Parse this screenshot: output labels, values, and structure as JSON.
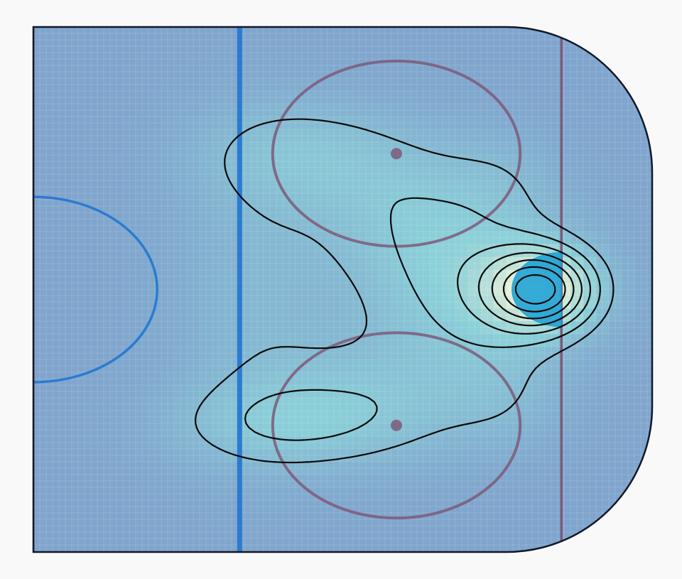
{
  "chart_data": {
    "type": "heatmap",
    "title": "",
    "xlabel": "",
    "ylabel": "",
    "grid": true,
    "legend": "none",
    "colors": {
      "background": "#f9f9f9",
      "rink_outline": "#111827",
      "blue_line": "#2b7bd0",
      "red_line": "#7d5a7a",
      "faceoff_circle": "#7d5a7a",
      "faceoff_dot": "#7d5a7a",
      "crease": "#1fa3d6",
      "contour": "#0b0b0b",
      "heat_low": "#7fa3cc",
      "heat_mid": "#8acfd8",
      "heat_high": "#fff9d6"
    },
    "density_model": {
      "x_range": [
        25,
        100
      ],
      "y_range": [
        -42.5,
        42.5
      ],
      "base": 0.02,
      "components": [
        {
          "x": 86.5,
          "y": 0,
          "sx": 4.5,
          "sy": 4.5,
          "w": 0.9
        },
        {
          "x": 78,
          "y": 0,
          "sx": 9,
          "sy": 10,
          "w": 0.35
        },
        {
          "x": 58,
          "y": 22,
          "sx": 9,
          "sy": 6,
          "w": 0.22
        },
        {
          "x": 70,
          "y": 13,
          "sx": 8,
          "sy": 8,
          "w": 0.2
        },
        {
          "x": 55,
          "y": -22,
          "sx": 10,
          "sy": 5,
          "w": 0.22
        },
        {
          "x": 66,
          "y": -18,
          "sx": 10,
          "sy": 7,
          "w": 0.2
        },
        {
          "x": 52,
          "y": 0,
          "sx": 7,
          "sy": 18,
          "w": 0.15
        },
        {
          "x": 82,
          "y": 18,
          "sx": 5,
          "sy": 6,
          "w": 0.09
        },
        {
          "x": 82,
          "y": -18,
          "sx": 5,
          "sy": 6,
          "w": 0.09
        }
      ],
      "contour_levels": [
        0.18,
        0.3,
        0.42,
        0.54,
        0.66,
        0.78,
        0.9
      ]
    }
  }
}
